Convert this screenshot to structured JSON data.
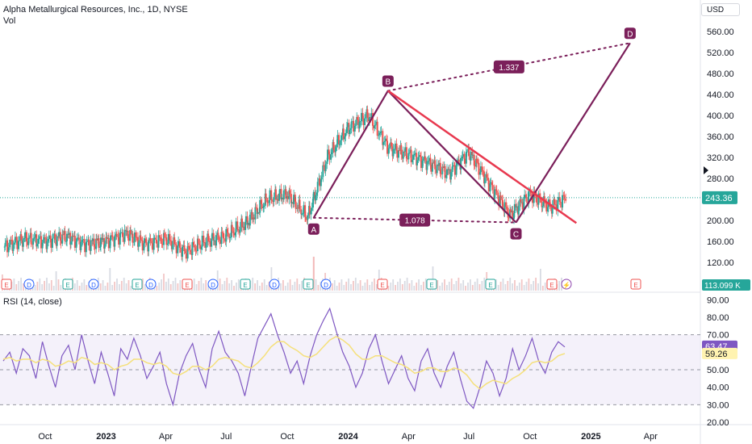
{
  "header": {
    "title": "Alpha Metallurgical Resources, Inc., 1D, NYSE",
    "vol_label": "Vol"
  },
  "currency": "USD",
  "rsi": {
    "label": "RSI (14, close)",
    "value": "63.47",
    "ma_value": "59.26"
  },
  "last_price": "243.36",
  "volume_last": "113.099 K",
  "colors": {
    "up": "#26a69a",
    "down": "#ef5350",
    "pattern": "#7b1f5a",
    "trendline": "#e8394f",
    "rsi": "#7e57c2",
    "rsi_ma": "#f5e07a",
    "price_tag": "#26a69a"
  },
  "chart_data": [
    {
      "type": "candlestick",
      "symbol": "AMR",
      "timeframe": "1D",
      "x_ticks": [
        "Oct",
        "2023",
        "Apr",
        "Jul",
        "Oct",
        "2024",
        "Apr",
        "Jul",
        "Oct",
        "2025",
        "Apr"
      ],
      "y_ticks": [
        "560.00",
        "520.00",
        "480.00",
        "440.00",
        "400.00",
        "360.00",
        "320.00",
        "280.00",
        "240.00",
        "200.00",
        "160.00",
        "120.00",
        "80.00"
      ],
      "ylim": [
        80,
        580
      ],
      "approx_close_path": [
        {
          "x": "2022-08-01",
          "y": 150
        },
        {
          "x": "2022-09-01",
          "y": 165
        },
        {
          "x": "2022-10-01",
          "y": 160
        },
        {
          "x": "2022-11-01",
          "y": 170
        },
        {
          "x": "2022-12-01",
          "y": 155
        },
        {
          "x": "2023-01-01",
          "y": 160
        },
        {
          "x": "2023-02-01",
          "y": 175
        },
        {
          "x": "2023-03-01",
          "y": 155
        },
        {
          "x": "2023-04-01",
          "y": 165
        },
        {
          "x": "2023-05-01",
          "y": 140
        },
        {
          "x": "2023-06-01",
          "y": 160
        },
        {
          "x": "2023-07-01",
          "y": 170
        },
        {
          "x": "2023-08-01",
          "y": 195
        },
        {
          "x": "2023-09-01",
          "y": 240
        },
        {
          "x": "2023-10-01",
          "y": 250
        },
        {
          "x": "2023-11-01",
          "y": 205
        },
        {
          "x": "2023-12-01",
          "y": 320
        },
        {
          "x": "2024-01-01",
          "y": 375
        },
        {
          "x": "2024-02-01",
          "y": 400
        },
        {
          "x": "2024-03-01",
          "y": 340
        },
        {
          "x": "2024-04-01",
          "y": 325
        },
        {
          "x": "2024-05-01",
          "y": 310
        },
        {
          "x": "2024-06-01",
          "y": 290
        },
        {
          "x": "2024-07-01",
          "y": 330
        },
        {
          "x": "2024-08-01",
          "y": 270
        },
        {
          "x": "2024-09-01",
          "y": 210
        },
        {
          "x": "2024-10-01",
          "y": 250
        },
        {
          "x": "2024-11-01",
          "y": 225
        },
        {
          "x": "2024-11-25",
          "y": 243.36
        }
      ],
      "pattern_points": [
        {
          "label": "A",
          "x": "2023-11-10",
          "y": 205
        },
        {
          "label": "B",
          "x": "2024-03-01",
          "y": 447
        },
        {
          "label": "C",
          "x": "2024-09-10",
          "y": 196
        },
        {
          "label": "D",
          "x": "2025-03-01",
          "y": 538
        }
      ],
      "ratio_labels": [
        "1.337",
        "1.078"
      ],
      "trendline": [
        {
          "x": "2024-03-01",
          "y": 447
        },
        {
          "x": "2024-12-10",
          "y": 195
        }
      ],
      "last_price": 243.36
    },
    {
      "type": "line",
      "title": "RSI (14, close)",
      "y_ticks": [
        "90.00",
        "80.00",
        "70.00",
        "60.00",
        "50.00",
        "40.00",
        "30.00",
        "20.00"
      ],
      "ylim": [
        20,
        92
      ],
      "band": [
        30,
        70
      ],
      "midline": 50,
      "series": [
        {
          "values": [
            55,
            60,
            48,
            62,
            58,
            45,
            66,
            52,
            40,
            58,
            64,
            50,
            70,
            55,
            42,
            60,
            48,
            35,
            62,
            56,
            68,
            58,
            45,
            52,
            60,
            42,
            30,
            48,
            58,
            65,
            50,
            40,
            62,
            72,
            60,
            55,
            48,
            35,
            52,
            68,
            75,
            82,
            70,
            60,
            48,
            55,
            42,
            58,
            70,
            78,
            85,
            72,
            60,
            52,
            40,
            48,
            62,
            70,
            55,
            42,
            50,
            58,
            45,
            38,
            55,
            62,
            48,
            40,
            52,
            60,
            45,
            32,
            28,
            40,
            55,
            48,
            35,
            45,
            62,
            50,
            58,
            68,
            55,
            48,
            60,
            66,
            63
          ]
        },
        {
          "values": [
            56,
            57,
            55,
            56,
            56,
            54,
            56,
            55,
            52,
            53,
            55,
            54,
            57,
            56,
            53,
            54,
            53,
            50,
            52,
            53,
            56,
            56,
            54,
            53,
            54,
            52,
            48,
            47,
            49,
            52,
            52,
            50,
            52,
            56,
            57,
            56,
            55,
            52,
            51,
            54,
            58,
            63,
            66,
            66,
            63,
            61,
            58,
            57,
            59,
            63,
            67,
            69,
            67,
            64,
            59,
            56,
            56,
            58,
            58,
            56,
            54,
            53,
            51,
            48,
            49,
            51,
            51,
            49,
            49,
            51,
            50,
            47,
            42,
            39,
            42,
            44,
            43,
            42,
            45,
            47,
            50,
            54,
            55,
            54,
            55,
            58,
            59.26
          ]
        }
      ]
    }
  ]
}
